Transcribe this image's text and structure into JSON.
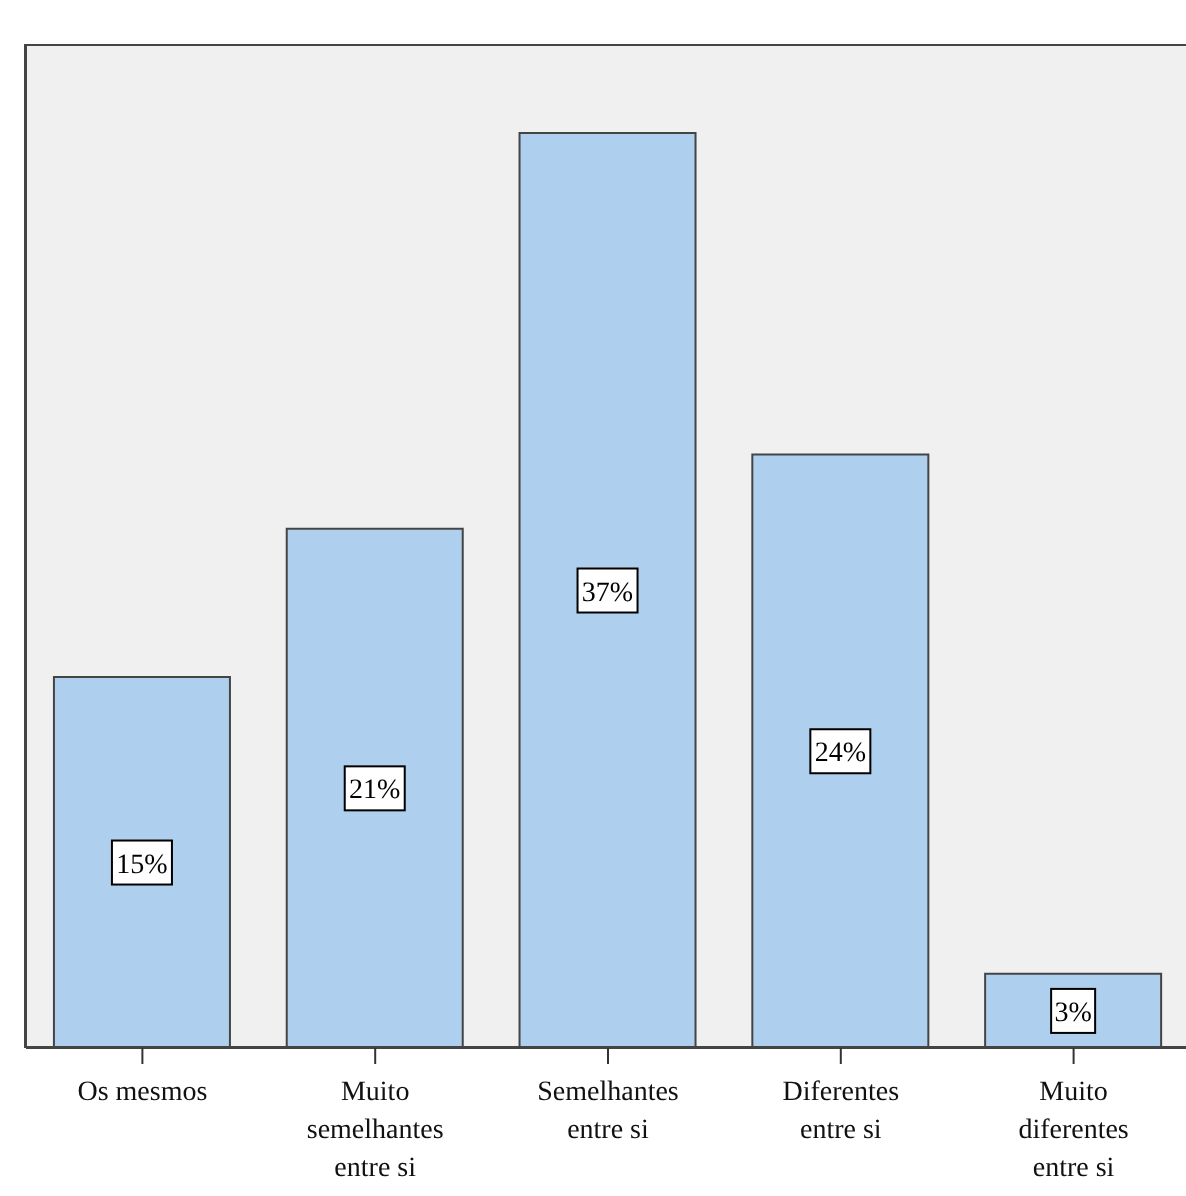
{
  "chart_data": {
    "type": "bar",
    "categories": [
      "Os mesmos",
      "Muito semelhantes entre si",
      "Semelhantes entre si",
      "Diferentes entre si",
      "Muito diferentes entre si"
    ],
    "values": [
      15,
      21,
      37,
      24,
      3
    ],
    "value_labels": [
      "15%",
      "21%",
      "37%",
      "24%",
      "3%"
    ],
    "color": "#aed0ee",
    "ylim": [
      0,
      40.6
    ],
    "grid": false,
    "legend": false
  }
}
